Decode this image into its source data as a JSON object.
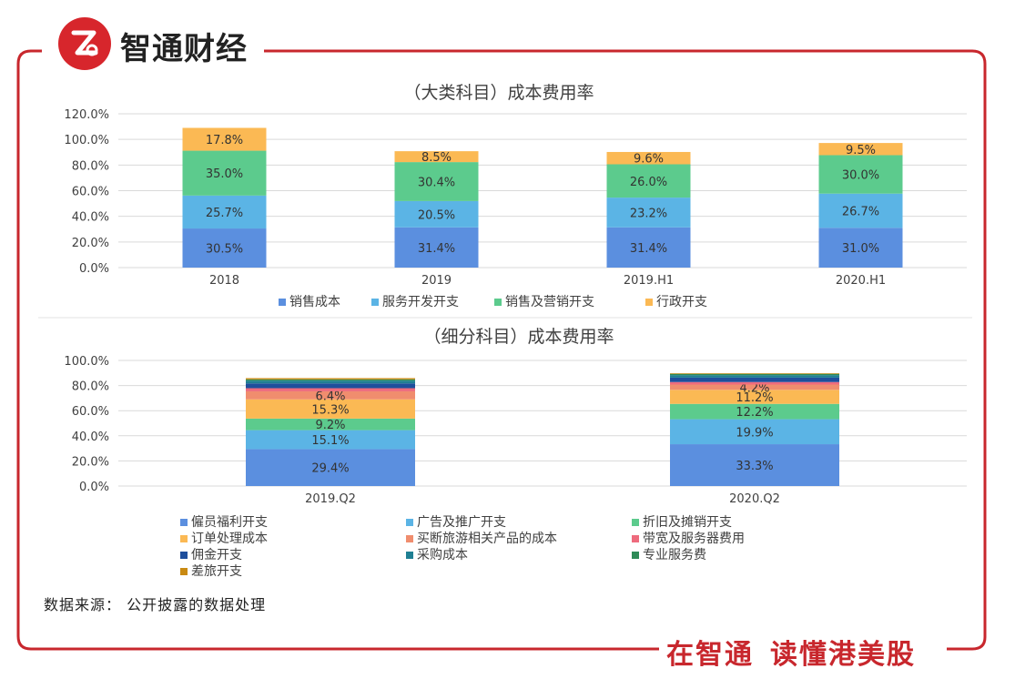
{
  "brand": {
    "name": "智通财经",
    "logo_letter": "Z"
  },
  "footer": {
    "source": "数据来源： 公开披露的数据处理",
    "slogan_1": "在智通",
    "slogan_2": "读懂港美股"
  },
  "colors": {
    "frame": "#c8272d",
    "grid": "#d9d9d9"
  },
  "chart_data": [
    {
      "type": "bar",
      "stacked": true,
      "title": "（大类科目）成本费用率",
      "categories": [
        "2018",
        "2019",
        "2019.H1",
        "2020.H1"
      ],
      "yticks": [
        "120.0%",
        "100.0%",
        "80.0%",
        "60.0%",
        "40.0%",
        "20.0%",
        "0.0%"
      ],
      "ylim": [
        0,
        120
      ],
      "series": [
        {
          "name": "销售成本",
          "color": "#5b8fdf",
          "values": [
            30.5,
            31.4,
            31.4,
            31.0
          ],
          "labels": [
            "30.5%",
            "31.4%",
            "31.4%",
            "31.0%"
          ]
        },
        {
          "name": "服务开发开支",
          "color": "#5bb4e5",
          "values": [
            25.7,
            20.5,
            23.2,
            26.7
          ],
          "labels": [
            "25.7%",
            "20.5%",
            "23.2%",
            "26.7%"
          ]
        },
        {
          "name": "销售及营销开支",
          "color": "#5ccb8d",
          "values": [
            35.0,
            30.4,
            26.0,
            30.0
          ],
          "labels": [
            "35.0%",
            "30.4%",
            "26.0%",
            "30.0%"
          ]
        },
        {
          "name": "行政开支",
          "color": "#fbb954",
          "values": [
            17.8,
            8.5,
            9.6,
            9.5
          ],
          "labels": [
            "17.8%",
            "8.5%",
            "9.6%",
            "9.5%"
          ]
        }
      ]
    },
    {
      "type": "bar",
      "stacked": true,
      "title": "（细分科目）成本费用率",
      "categories": [
        "2019.Q2",
        "2020.Q2"
      ],
      "yticks": [
        "100.0%",
        "80.0%",
        "60.0%",
        "40.0%",
        "20.0%",
        "0.0%"
      ],
      "ylim": [
        0,
        100
      ],
      "series": [
        {
          "name": "僱员福利开支",
          "color": "#5b8fdf",
          "values": [
            29.4,
            33.3
          ],
          "labels": [
            "29.4%",
            "33.3%"
          ]
        },
        {
          "name": "广告及推广开支",
          "color": "#5bb4e5",
          "values": [
            15.1,
            19.9
          ],
          "labels": [
            "15.1%",
            "19.9%"
          ]
        },
        {
          "name": "折旧及摊销开支",
          "color": "#5ccb8d",
          "values": [
            9.2,
            12.2
          ],
          "labels": [
            "9.2%",
            "12.2%"
          ]
        },
        {
          "name": "订单处理成本",
          "color": "#fbb954",
          "values": [
            15.3,
            11.2
          ],
          "labels": [
            "15.3%",
            "11.2%"
          ]
        },
        {
          "name": "买断旅游相关产品的成本",
          "color": "#f08d6e",
          "values": [
            6.4,
            4.2
          ],
          "labels": [
            "6.4%",
            "4.2%"
          ]
        },
        {
          "name": "带宽及服务器费用",
          "color": "#ee6b7d",
          "values": [
            2.5,
            2.0
          ],
          "labels": [
            "",
            ""
          ]
        },
        {
          "name": "佣金开支",
          "color": "#1e4f9c",
          "values": [
            3.8,
            3.5
          ],
          "labels": [
            "",
            ""
          ]
        },
        {
          "name": "采购成本",
          "color": "#1f7f93",
          "values": [
            2.2,
            2.0
          ],
          "labels": [
            "",
            ""
          ]
        },
        {
          "name": "专业服务费",
          "color": "#2e8b57",
          "values": [
            1.0,
            1.0
          ],
          "labels": [
            "",
            ""
          ]
        },
        {
          "name": "差旅开支",
          "color": "#c98a12",
          "values": [
            1.0,
            0.5
          ],
          "labels": [
            "",
            ""
          ]
        }
      ]
    }
  ]
}
